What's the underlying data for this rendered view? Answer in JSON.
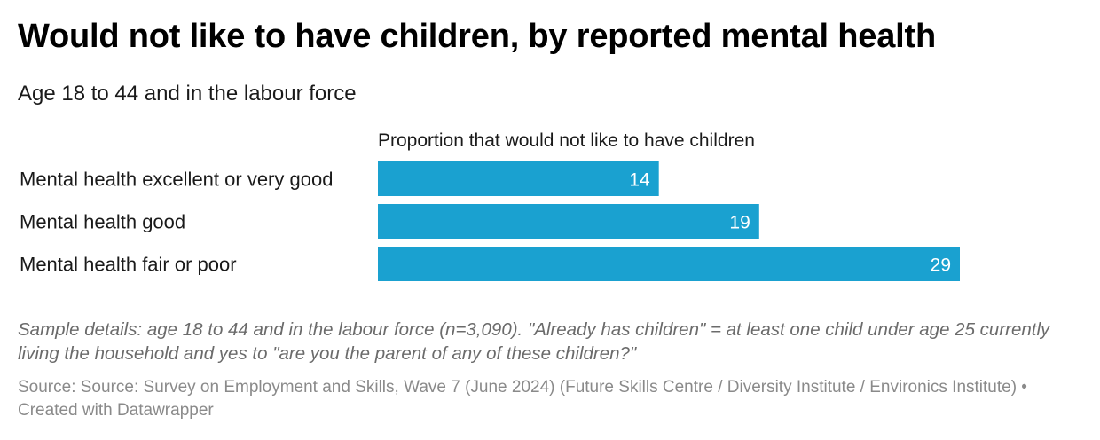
{
  "title": "Would not like to have children, by reported mental health",
  "subtitle": "Age 18 to 44 and in the labour force",
  "notes": "Sample details: age 18 to 44 and in the labour force (n=3,090). \"Already has children\" = at least one child under age 25 currently living the household and yes to \"are you the parent of any of these children?\"",
  "source": "Source: Source: Survey on Employment and Skills, Wave 7 (June 2024) (Future Skills Centre / Diversity Institute / Environics Institute) • Created with Datawrapper",
  "colors": {
    "bar": "#1aa1d0",
    "bar_label": "#ffffff"
  },
  "chart_data": {
    "type": "bar",
    "orientation": "horizontal",
    "column_header": "Proportion that would not like to have children",
    "categories": [
      "Mental health excellent or very good",
      "Mental health good",
      "Mental health fair or poor"
    ],
    "values": [
      14,
      19,
      29
    ],
    "xlim": [
      0,
      29
    ],
    "grid": false,
    "value_labels": "inside-bar-end"
  }
}
